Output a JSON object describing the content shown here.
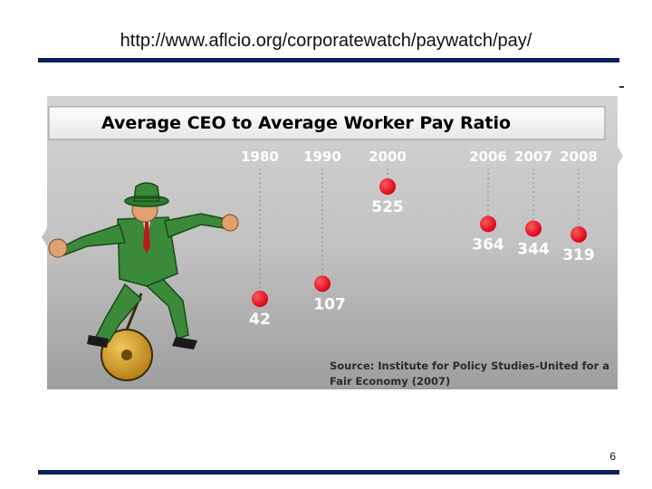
{
  "slide": {
    "url_text": "http://www.aflcio.org/corporatewatch/paywatch/pay/",
    "page_number": "6"
  },
  "colors": {
    "rule": "#0b1f5c",
    "title_red": "#c8102e",
    "dot_red": "#e3001b",
    "panel_gray": "#b9b9b9",
    "suit_green": "#3a8a3a"
  },
  "illustration": {
    "subject": "businessman-on-unicycle",
    "icons": [
      "fedora-hat-icon",
      "unicycle-wheel-icon"
    ]
  },
  "chart_data": {
    "type": "scatter",
    "title": "Average CEO to Average Worker Pay Ratio",
    "categories": [
      "1980",
      "1990",
      "2000",
      "2006",
      "2007",
      "2008"
    ],
    "values": [
      42,
      107,
      525,
      364,
      344,
      319
    ],
    "value_labels": [
      "42",
      "107",
      "525",
      "364",
      "344",
      "319"
    ],
    "source": [
      "Source: Institute for Policy Studies-United for a",
      "Fair Economy (2007)"
    ],
    "ylim": [
      0,
      600
    ],
    "grid": false,
    "legend": "none"
  }
}
